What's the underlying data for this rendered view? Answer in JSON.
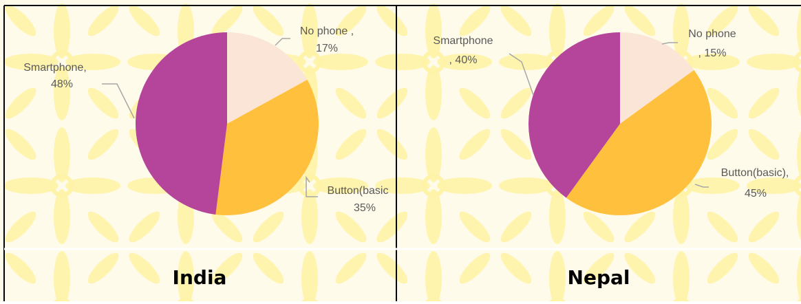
{
  "chart_data": [
    {
      "type": "pie",
      "title": "India",
      "categories": [
        "No phone ,",
        "Button(basic",
        "Smartphone,"
      ],
      "values": [
        17,
        35,
        48
      ],
      "value_labels": [
        "17%",
        "35%",
        "48%"
      ],
      "colors": [
        "#fbe5d6",
        "#ffc03d",
        "#b4459a"
      ]
    },
    {
      "type": "pie",
      "title": "Nepal",
      "categories": [
        "No phone",
        "Button(basic),",
        "Smartphone"
      ],
      "values": [
        15,
        45,
        40
      ],
      "value_labels": [
        ", 15%",
        "45%",
        ", 40%"
      ],
      "colors": [
        "#fbe5d6",
        "#ffc03d",
        "#b4459a"
      ]
    }
  ]
}
